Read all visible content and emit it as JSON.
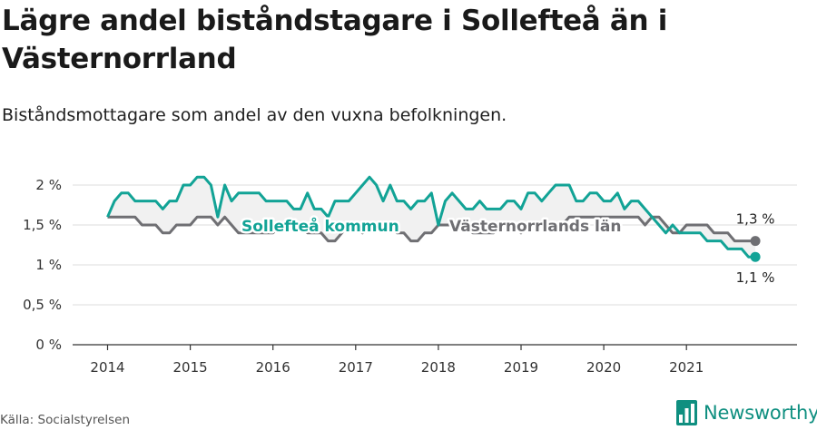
{
  "title": "Lägre andel biståndstagare i Sollefteå än i Västernorrland",
  "subtitle": "Biståndsmottagare som andel av den vuxna befolkningen.",
  "source": "Källa: Socialstyrelsen",
  "brand": {
    "name": "Newsworthy",
    "icon": "newsworthy-bar-logo-icon",
    "color": "#0f8f80"
  },
  "chart_data": {
    "type": "line",
    "title": "Lägre andel biståndstagare i Sollefteå än i Västernorrland",
    "subtitle": "Biståndsmottagare som andel av den vuxna befolkningen.",
    "xlabel": "",
    "ylabel": "",
    "x_ticks": [
      "2014",
      "2015",
      "2016",
      "2017",
      "2018",
      "2019",
      "2020",
      "2021"
    ],
    "y_ticks": [
      "0 %",
      "0,5 %",
      "1 %",
      "1,5 %",
      "2 %"
    ],
    "ylim": [
      0,
      2.2
    ],
    "xlim": [
      2013.6,
      2022.1
    ],
    "grid": true,
    "legend": "inline labels",
    "series": [
      {
        "name": "Sollefteå kommun",
        "color": "#12a396",
        "end_label": "1,1 %",
        "x": [
          2014.0,
          2014.083,
          2014.167,
          2014.25,
          2014.333,
          2014.417,
          2014.5,
          2014.583,
          2014.667,
          2014.75,
          2014.833,
          2014.917,
          2015.0,
          2015.083,
          2015.167,
          2015.25,
          2015.333,
          2015.417,
          2015.5,
          2015.583,
          2015.667,
          2015.75,
          2015.833,
          2015.917,
          2016.0,
          2016.083,
          2016.167,
          2016.25,
          2016.333,
          2016.417,
          2016.5,
          2016.583,
          2016.667,
          2016.75,
          2016.833,
          2016.917,
          2017.0,
          2017.083,
          2017.167,
          2017.25,
          2017.333,
          2017.417,
          2017.5,
          2017.583,
          2017.667,
          2017.75,
          2017.833,
          2017.917,
          2018.0,
          2018.083,
          2018.167,
          2018.25,
          2018.333,
          2018.417,
          2018.5,
          2018.583,
          2018.667,
          2018.75,
          2018.833,
          2018.917,
          2019.0,
          2019.083,
          2019.167,
          2019.25,
          2019.333,
          2019.417,
          2019.5,
          2019.583,
          2019.667,
          2019.75,
          2019.833,
          2019.917,
          2020.0,
          2020.083,
          2020.167,
          2020.25,
          2020.333,
          2020.417,
          2020.5,
          2020.583,
          2020.667,
          2020.75,
          2020.833,
          2020.917,
          2021.0,
          2021.083,
          2021.167,
          2021.25,
          2021.333,
          2021.417,
          2021.5,
          2021.583,
          2021.667,
          2021.75,
          2021.833
        ],
        "y": [
          1.6,
          1.8,
          1.9,
          1.9,
          1.8,
          1.8,
          1.8,
          1.8,
          1.7,
          1.8,
          1.8,
          2.0,
          2.0,
          2.1,
          2.1,
          2.0,
          1.6,
          2.0,
          1.8,
          1.9,
          1.9,
          1.9,
          1.9,
          1.8,
          1.8,
          1.8,
          1.8,
          1.7,
          1.7,
          1.9,
          1.7,
          1.7,
          1.6,
          1.8,
          1.8,
          1.8,
          1.9,
          2.0,
          2.1,
          2.0,
          1.8,
          2.0,
          1.8,
          1.8,
          1.7,
          1.8,
          1.8,
          1.9,
          1.5,
          1.8,
          1.9,
          1.8,
          1.7,
          1.7,
          1.8,
          1.7,
          1.7,
          1.7,
          1.8,
          1.8,
          1.7,
          1.9,
          1.9,
          1.8,
          1.9,
          2.0,
          2.0,
          2.0,
          1.8,
          1.8,
          1.9,
          1.9,
          1.8,
          1.8,
          1.9,
          1.7,
          1.8,
          1.8,
          1.7,
          1.6,
          1.5,
          1.4,
          1.5,
          1.4,
          1.4,
          1.4,
          1.4,
          1.3,
          1.3,
          1.3,
          1.2,
          1.2,
          1.2,
          1.1,
          1.1
        ]
      },
      {
        "name": "Västernorrlands län",
        "color": "#6f6f73",
        "end_label": "1,3 %",
        "x": [
          2014.0,
          2014.083,
          2014.167,
          2014.25,
          2014.333,
          2014.417,
          2014.5,
          2014.583,
          2014.667,
          2014.75,
          2014.833,
          2014.917,
          2015.0,
          2015.083,
          2015.167,
          2015.25,
          2015.333,
          2015.417,
          2015.5,
          2015.583,
          2015.667,
          2015.75,
          2015.833,
          2015.917,
          2016.0,
          2016.083,
          2016.167,
          2016.25,
          2016.333,
          2016.417,
          2016.5,
          2016.583,
          2016.667,
          2016.75,
          2016.833,
          2016.917,
          2017.0,
          2017.083,
          2017.167,
          2017.25,
          2017.333,
          2017.417,
          2017.5,
          2017.583,
          2017.667,
          2017.75,
          2017.833,
          2017.917,
          2018.0,
          2018.083,
          2018.167,
          2018.25,
          2018.333,
          2018.417,
          2018.5,
          2018.583,
          2018.667,
          2018.75,
          2018.833,
          2018.917,
          2019.0,
          2019.083,
          2019.167,
          2019.25,
          2019.333,
          2019.417,
          2019.5,
          2019.583,
          2019.667,
          2019.75,
          2019.833,
          2019.917,
          2020.0,
          2020.083,
          2020.167,
          2020.25,
          2020.333,
          2020.417,
          2020.5,
          2020.583,
          2020.667,
          2020.75,
          2020.833,
          2020.917,
          2021.0,
          2021.083,
          2021.167,
          2021.25,
          2021.333,
          2021.417,
          2021.5,
          2021.583,
          2021.667,
          2021.75,
          2021.833
        ],
        "y": [
          1.6,
          1.6,
          1.6,
          1.6,
          1.6,
          1.5,
          1.5,
          1.5,
          1.4,
          1.4,
          1.5,
          1.5,
          1.5,
          1.6,
          1.6,
          1.6,
          1.5,
          1.6,
          1.5,
          1.4,
          1.4,
          1.4,
          1.4,
          1.4,
          1.4,
          1.5,
          1.5,
          1.5,
          1.5,
          1.4,
          1.4,
          1.4,
          1.3,
          1.3,
          1.4,
          1.5,
          1.5,
          1.4,
          1.5,
          1.5,
          1.5,
          1.5,
          1.4,
          1.4,
          1.3,
          1.3,
          1.4,
          1.4,
          1.5,
          1.5,
          1.5,
          1.5,
          1.5,
          1.4,
          1.4,
          1.4,
          1.4,
          1.5,
          1.5,
          1.5,
          1.4,
          1.5,
          1.5,
          1.5,
          1.5,
          1.5,
          1.5,
          1.6,
          1.6,
          1.6,
          1.6,
          1.6,
          1.6,
          1.6,
          1.6,
          1.6,
          1.6,
          1.6,
          1.5,
          1.6,
          1.6,
          1.5,
          1.4,
          1.4,
          1.5,
          1.5,
          1.5,
          1.5,
          1.4,
          1.4,
          1.4,
          1.3,
          1.3,
          1.3,
          1.3
        ]
      }
    ]
  }
}
